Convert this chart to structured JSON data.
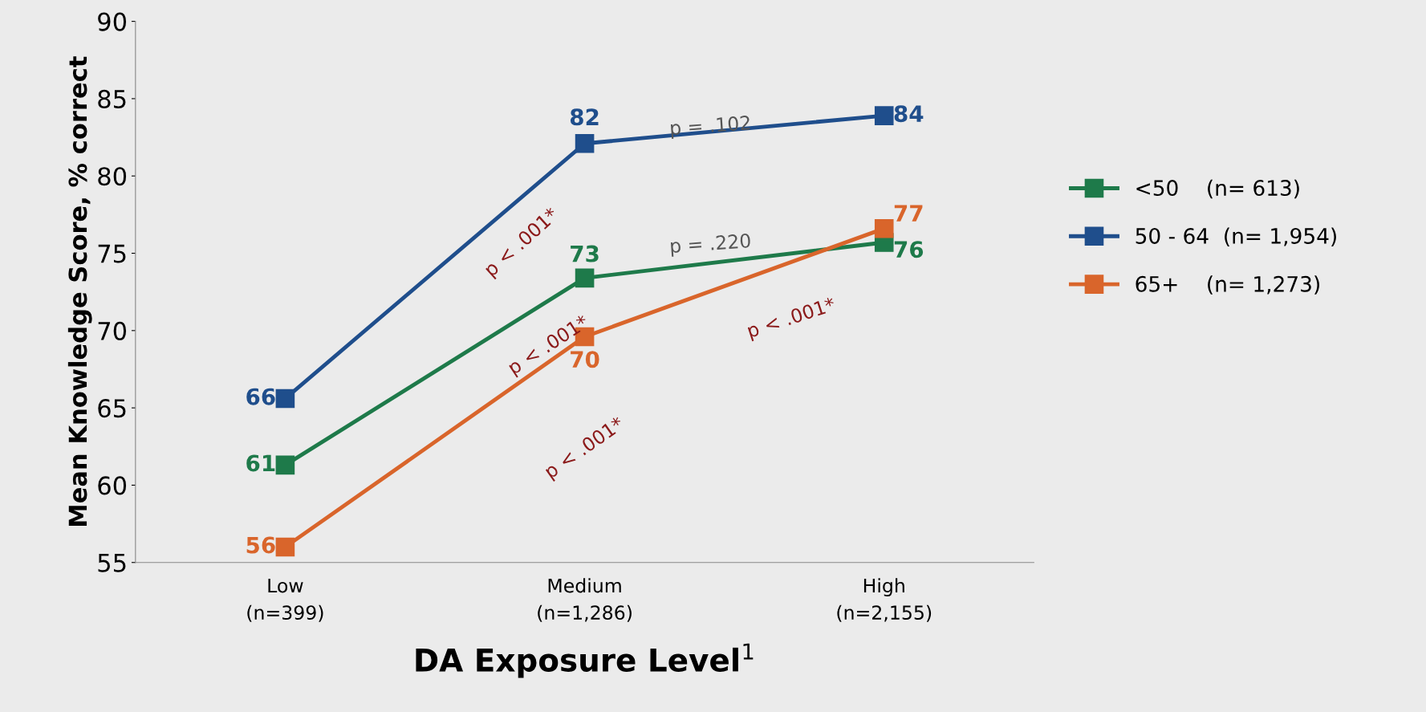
{
  "chart_data": {
    "type": "line",
    "xlabel": "DA Exposure Level$^{1}$",
    "ylabel": "Mean Knowledge Score, % correct",
    "categories": [
      "Low\n(n=399)",
      "Medium\n(n=1,286)",
      "High\n(n=2,155)"
    ],
    "series": [
      {
        "name": "<50    (n= 613)",
        "color": "#1e7a4a",
        "values": [
          61.3,
          73.4,
          75.7
        ],
        "value_labels": [
          "61",
          "73",
          "76"
        ]
      },
      {
        "name": "50 - 64  (n= 1,954)",
        "color": "#1f4e8c",
        "values": [
          65.6,
          82.1,
          83.9
        ],
        "value_labels": [
          "66",
          "82",
          "84"
        ]
      },
      {
        "name": "65+    (n= 1,273)",
        "color": "#d9652b",
        "values": [
          56.0,
          69.6,
          76.6
        ],
        "value_labels": [
          "56",
          "70",
          "77"
        ]
      }
    ],
    "annotations": [
      "p < .001*",
      "p < .001*",
      "p < .001*",
      "p = .102",
      "p = .220",
      "p < .001*"
    ],
    "ylim": [
      55,
      90
    ],
    "yticks": [
      55,
      60,
      65,
      70,
      75,
      80,
      85,
      90
    ],
    "grid": false,
    "legend": "right",
    "marker": "square",
    "line_style": "solid"
  }
}
